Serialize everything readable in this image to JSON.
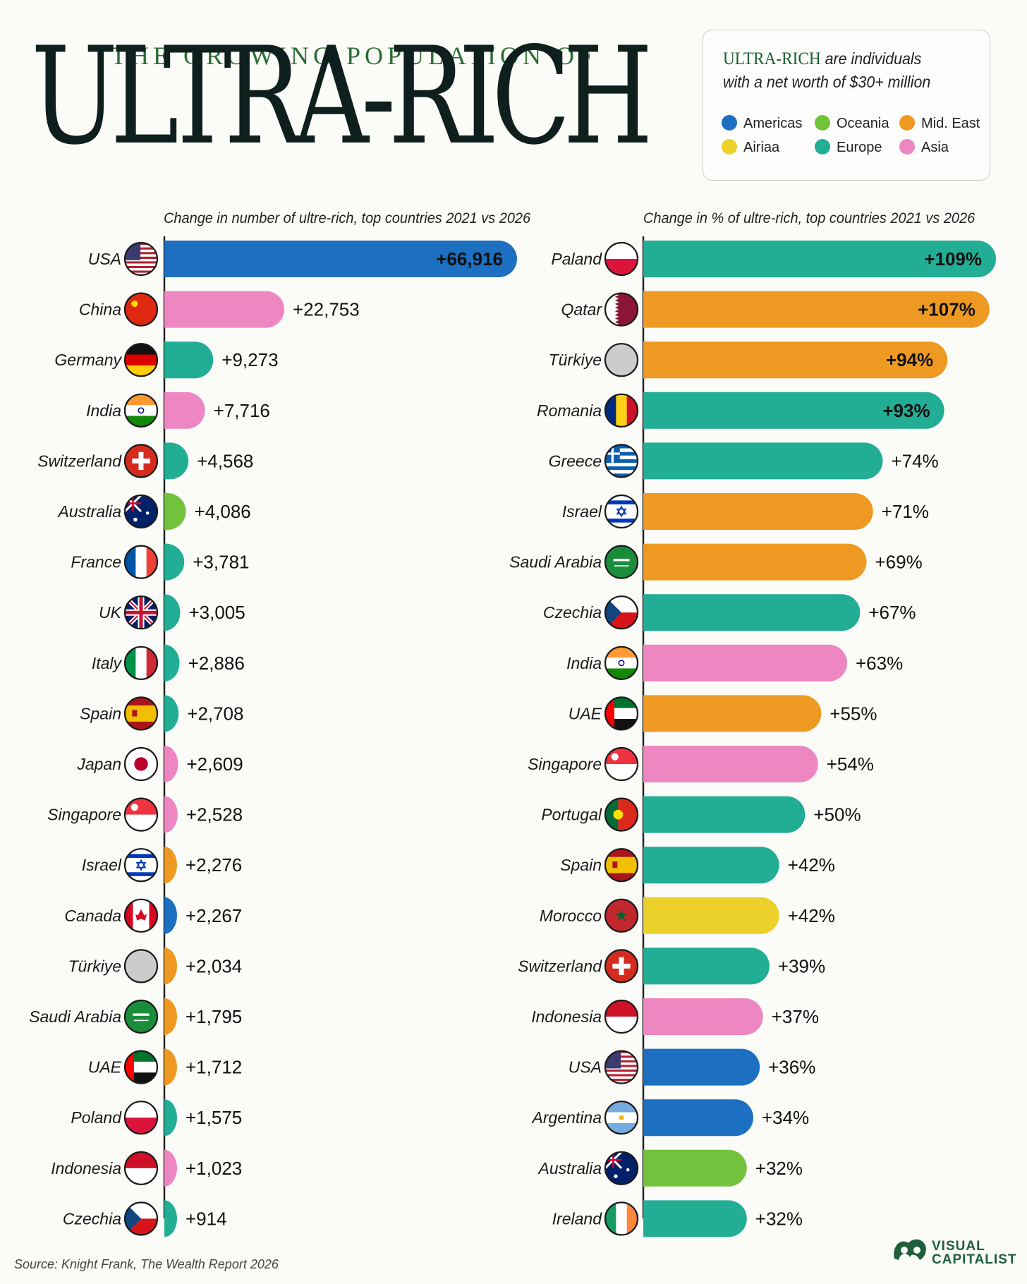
{
  "header": {
    "supertitle": "THE GROWING POPULATION OF",
    "title": "ULTRA-RICH"
  },
  "definition": {
    "term": "ULTRA-RICH",
    "text_line1": " are individuals",
    "text_line2": "with a net worth of $30+ million"
  },
  "legend": [
    {
      "label": "Americas",
      "color": "#1c6fc1"
    },
    {
      "label": "Oceania",
      "color": "#72c23d"
    },
    {
      "label": "Mid. East",
      "color": "#ee9a22"
    },
    {
      "label": "Airiaa",
      "color": "#ecd12c"
    },
    {
      "label": "Europe",
      "color": "#22ad95"
    },
    {
      "label": "Asia",
      "color": "#ee86c2"
    }
  ],
  "source": "Source: Knight Frank, The Wealth Report 2026",
  "branding": {
    "line1": "VISUAL",
    "line2": "CAPITALIST"
  },
  "chart_data": [
    {
      "type": "bar",
      "orientation": "horizontal",
      "subtitle": "Change in number of ultre-rich, top countries 2021 vs 2026",
      "categories": [
        "USA",
        "China",
        "Germany",
        "India",
        "Switzerland",
        "Australia",
        "France",
        "UK",
        "Italy",
        "Spain",
        "Japan",
        "Singapore",
        "Israel",
        "Canada",
        "Türkiye",
        "Saudi Arabia",
        "UAE",
        "Poland",
        "Indonesia",
        "Czechia"
      ],
      "values": [
        66916,
        22753,
        9273,
        7716,
        4568,
        4086,
        3781,
        3005,
        2886,
        2708,
        2609,
        2528,
        2276,
        2267,
        2034,
        1795,
        1712,
        1575,
        1023,
        914
      ],
      "labels": [
        "+66,916",
        "+22,753",
        "+9,273",
        "+7,716",
        "+4,568",
        "+4,086",
        "+3,781",
        "+3,005",
        "+2,886",
        "+2,708",
        "+2,609",
        "+2,528",
        "+2,276",
        "+2,267",
        "+2,034",
        "+1,795",
        "+1,712",
        "+1,575",
        "+1,023",
        "+914"
      ],
      "regions": [
        "Americas",
        "Asia",
        "Europe",
        "Asia",
        "Europe",
        "Oceania",
        "Europe",
        "Europe",
        "Europe",
        "Europe",
        "Asia",
        "Asia",
        "Mid. East",
        "Americas",
        "Mid. East",
        "Mid. East",
        "Mid. East",
        "Europe",
        "Asia",
        "Europe"
      ]
    },
    {
      "type": "bar",
      "orientation": "horizontal",
      "subtitle": "Change in % of ultre-rich, top countries 2021 vs 2026",
      "categories": [
        "Paland",
        "Qatar",
        "Türkiye",
        "Romania",
        "Greece",
        "Israel",
        "Saudi Arabia",
        "Czechia",
        "India",
        "UAE",
        "Singapore",
        "Portugal",
        "Spain",
        "Morocco",
        "Switzerland",
        "Indonesia",
        "USA",
        "Argentina",
        "Australia",
        "Ireland"
      ],
      "values": [
        109,
        107,
        94,
        93,
        74,
        71,
        69,
        67,
        63,
        55,
        54,
        50,
        42,
        42,
        39,
        37,
        36,
        34,
        32,
        32
      ],
      "labels": [
        "+109%",
        "+107%",
        "+94%",
        "+93%",
        "+74%",
        "+71%",
        "+69%",
        "+67%",
        "+63%",
        "+55%",
        "+54%",
        "+50%",
        "+42%",
        "+42%",
        "+39%",
        "+37%",
        "+36%",
        "+34%",
        "+32%",
        "+32%"
      ],
      "regions": [
        "Europe",
        "Mid. East",
        "Mid. East",
        "Europe",
        "Europe",
        "Mid. East",
        "Mid. East",
        "Europe",
        "Asia",
        "Mid. East",
        "Asia",
        "Europe",
        "Europe",
        "Airiaa",
        "Europe",
        "Asia",
        "Americas",
        "Americas",
        "Oceania",
        "Europe"
      ]
    }
  ]
}
